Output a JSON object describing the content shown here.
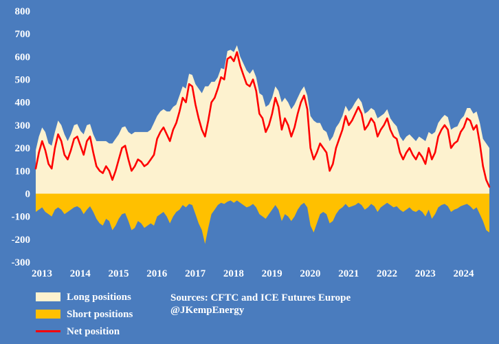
{
  "chart_data": {
    "type": "area",
    "title": "",
    "x_start": 2013.0,
    "x_step": "monthly",
    "x_ticks": [
      2013,
      2014,
      2015,
      2016,
      2017,
      2018,
      2019,
      2020,
      2021,
      2022,
      2023,
      2024
    ],
    "ylim": [
      -300,
      800
    ],
    "y_ticks": [
      800,
      700,
      600,
      500,
      400,
      300,
      200,
      100,
      0,
      -100,
      -200,
      -300
    ],
    "grid": false,
    "legend_position": "bottom-left",
    "series": [
      {
        "name": "Long positions",
        "type": "area",
        "color": "#fdf2cf",
        "values": [
          190,
          250,
          290,
          270,
          220,
          210,
          270,
          320,
          300,
          260,
          230,
          260,
          300,
          305,
          275,
          260,
          300,
          305,
          260,
          230,
          230,
          230,
          230,
          220,
          220,
          240,
          260,
          290,
          295,
          270,
          260,
          270,
          270,
          270,
          270,
          270,
          280,
          310,
          340,
          360,
          370,
          360,
          360,
          380,
          390,
          430,
          470,
          460,
          525,
          520,
          480,
          460,
          440,
          470,
          470,
          490,
          490,
          510,
          550,
          545,
          625,
          630,
          620,
          650,
          600,
          570,
          540,
          525,
          545,
          510,
          440,
          430,
          380,
          390,
          420,
          470,
          450,
          400,
          420,
          400,
          370,
          390,
          420,
          450,
          470,
          430,
          340,
          320,
          310,
          310,
          280,
          270,
          230,
          250,
          290,
          310,
          340,
          385,
          360,
          375,
          400,
          420,
          400,
          350,
          360,
          375,
          365,
          330,
          340,
          350,
          370,
          330,
          310,
          295,
          250,
          230,
          250,
          260,
          245,
          230,
          250,
          240,
          230,
          270,
          260,
          270,
          310,
          330,
          345,
          335,
          280,
          290,
          295,
          325,
          340,
          375,
          375,
          350,
          360,
          310,
          240,
          220,
          200
        ]
      },
      {
        "name": "Short positions",
        "type": "area",
        "color": "#ffc000",
        "values": [
          -80,
          -70,
          -60,
          -80,
          -90,
          -100,
          -70,
          -60,
          -70,
          -90,
          -80,
          -70,
          -60,
          -55,
          -65,
          -90,
          -70,
          -55,
          -80,
          -110,
          -130,
          -140,
          -110,
          -120,
          -160,
          -140,
          -110,
          -90,
          -85,
          -120,
          -160,
          -150,
          -120,
          -130,
          -150,
          -140,
          -130,
          -140,
          -100,
          -90,
          -80,
          -100,
          -130,
          -100,
          -80,
          -70,
          -50,
          -60,
          -45,
          -50,
          -90,
          -130,
          -160,
          -220,
          -150,
          -90,
          -70,
          -50,
          -40,
          -45,
          -35,
          -30,
          -40,
          -30,
          -40,
          -50,
          -60,
          -55,
          -45,
          -60,
          -90,
          -100,
          -110,
          -90,
          -70,
          -50,
          -70,
          -120,
          -90,
          -100,
          -120,
          -100,
          -70,
          -50,
          -40,
          -60,
          -140,
          -170,
          -130,
          -90,
          -80,
          -90,
          -130,
          -120,
          -90,
          -70,
          -60,
          -45,
          -60,
          -55,
          -50,
          -40,
          -50,
          -70,
          -60,
          -45,
          -55,
          -80,
          -60,
          -50,
          -40,
          -50,
          -60,
          -55,
          -70,
          -80,
          -70,
          -60,
          -75,
          -80,
          -70,
          -80,
          -100,
          -70,
          -110,
          -90,
          -60,
          -50,
          -45,
          -55,
          -80,
          -70,
          -65,
          -55,
          -50,
          -45,
          -55,
          -70,
          -60,
          -90,
          -120,
          -160,
          -170
        ]
      },
      {
        "name": "Net position",
        "type": "line",
        "color": "#fe0000",
        "values": [
          110,
          180,
          230,
          190,
          130,
          110,
          200,
          260,
          230,
          170,
          150,
          190,
          240,
          250,
          210,
          170,
          230,
          250,
          180,
          120,
          100,
          90,
          120,
          100,
          60,
          100,
          150,
          200,
          210,
          150,
          100,
          120,
          150,
          140,
          120,
          130,
          150,
          170,
          240,
          270,
          290,
          260,
          230,
          280,
          310,
          360,
          420,
          400,
          480,
          470,
          390,
          330,
          280,
          250,
          320,
          400,
          420,
          460,
          510,
          500,
          590,
          600,
          580,
          620,
          560,
          520,
          480,
          470,
          500,
          450,
          350,
          330,
          270,
          300,
          350,
          420,
          380,
          280,
          330,
          300,
          250,
          290,
          350,
          400,
          430,
          370,
          200,
          150,
          180,
          220,
          200,
          180,
          100,
          130,
          200,
          240,
          280,
          340,
          300,
          320,
          350,
          380,
          350,
          280,
          300,
          330,
          310,
          250,
          280,
          300,
          330,
          280,
          250,
          240,
          180,
          150,
          180,
          200,
          170,
          150,
          180,
          160,
          130,
          200,
          150,
          180,
          250,
          280,
          300,
          280,
          200,
          220,
          230,
          270,
          290,
          330,
          320,
          280,
          300,
          220,
          120,
          60,
          30
        ]
      }
    ]
  },
  "legend": {
    "items": [
      {
        "label": "Long positions",
        "color": "#fdf2cf",
        "swatch": "area"
      },
      {
        "label": "Short positions",
        "color": "#ffc000",
        "swatch": "area"
      },
      {
        "label": "Net position",
        "color": "#fe0000",
        "swatch": "line"
      }
    ]
  },
  "annotations": {
    "line1": "Sources: CFTC and ICE Futures Europe",
    "line2": "@JKempEnergy"
  },
  "colors": {
    "background": "#4a7cbe",
    "text": "#ffffff"
  }
}
